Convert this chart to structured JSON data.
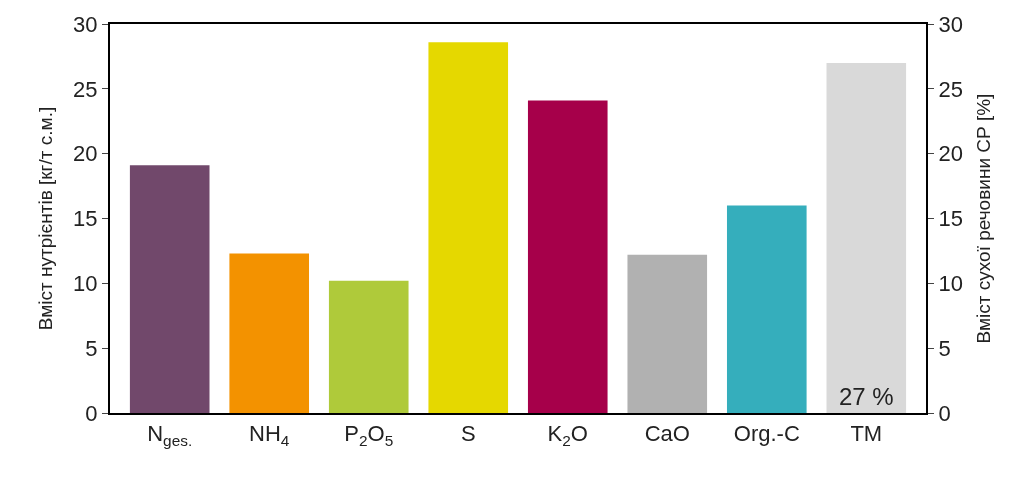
{
  "chart_data": {
    "type": "bar",
    "ylabel": "Вміст нутрієнтів [кг/т с.м.]",
    "y2label": "Вміст сухої речовини СР [%]",
    "categories": [
      "N$_{ges.}$",
      "NH$_{4}$",
      "P$_{2}$O$_{5}$",
      "S",
      "K$_{2}$O",
      "CaO",
      "Org.-C",
      "TM"
    ],
    "series": [
      {
        "colors": [
          "#71486b",
          "#f39200",
          "#afca3a",
          "#e5d800",
          "#a6004a",
          "#b1b1b1",
          "#35aebc",
          "#d9d9d9"
        ],
        "values": [
          19.1,
          12.3,
          10.2,
          28.6,
          24.1,
          12.2,
          16.0,
          null
        ]
      },
      {
        "axis": "y2",
        "colors": [
          "#d9d9d9",
          "#d9d9d9",
          "#d9d9d9",
          "#d9d9d9",
          "#d9d9d9",
          "#d9d9d9",
          "#d9d9d9",
          "#d9d9d9"
        ],
        "values": [
          null,
          null,
          null,
          null,
          null,
          null,
          null,
          27
        ],
        "value_labels": [
          null,
          null,
          null,
          null,
          null,
          null,
          null,
          "27 %"
        ]
      }
    ],
    "ylim": [
      0,
      30
    ],
    "yticks": [
      0,
      5,
      10,
      15,
      20,
      25,
      30
    ],
    "y2lim": [
      0,
      30
    ],
    "y2ticks": [
      0,
      5,
      10,
      15,
      20,
      25,
      30
    ],
    "legend": false
  }
}
